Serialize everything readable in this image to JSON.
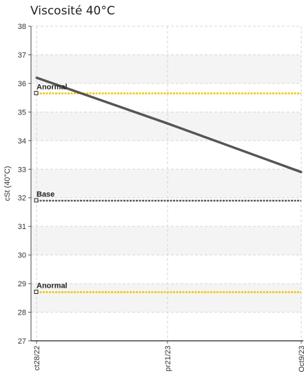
{
  "chart_data": {
    "type": "line",
    "title": "Viscosité 40°C",
    "ylabel": "cSt (40°C)",
    "xlabel": "",
    "ylim": [
      27,
      38
    ],
    "yticks": [
      27,
      28,
      29,
      30,
      31,
      32,
      33,
      34,
      35,
      36,
      37,
      38
    ],
    "categories": [
      "ct28/22",
      "pr21/23",
      "Oct9/23"
    ],
    "grid": true,
    "series": [
      {
        "values": [
          36.2,
          34.6,
          32.9
        ],
        "color": "#555555"
      }
    ],
    "reference_lines": [
      {
        "label": "Anormal",
        "value": 35.65,
        "color": "#f2c500"
      },
      {
        "label": "Base",
        "value": 31.9,
        "color": "#555555"
      },
      {
        "label": "Anormal",
        "value": 28.7,
        "color": "#f2c500"
      }
    ],
    "band_color": "#f4f4f4"
  }
}
